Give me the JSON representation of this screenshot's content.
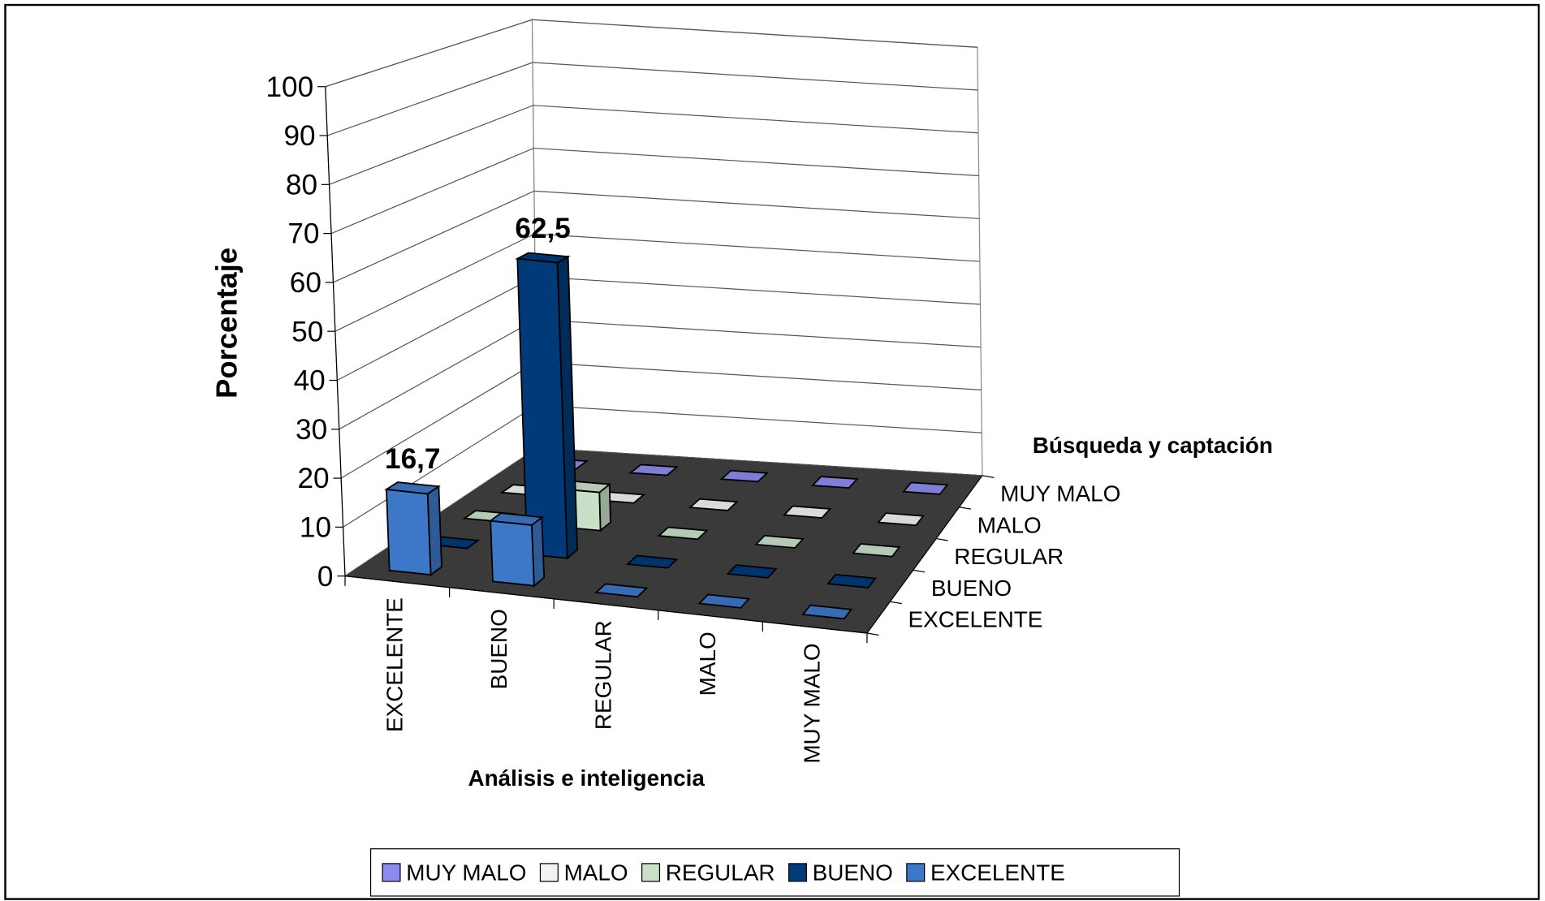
{
  "chart_data": {
    "type": "bar3d",
    "ylabel": "Porcentaje",
    "xlabel": "Análisis e inteligencia",
    "zlabel": "Búsqueda y captación",
    "categories": [
      "EXCELENTE",
      "BUENO",
      "REGULAR",
      "MALO",
      "MUY MALO"
    ],
    "series": [
      {
        "name": "MUY MALO",
        "color": "#8c8cf0",
        "values": [
          0,
          0,
          0,
          0,
          0
        ]
      },
      {
        "name": "MALO",
        "color": "#f2f2f2",
        "values": [
          0,
          0,
          0,
          0,
          0
        ]
      },
      {
        "name": "REGULAR",
        "color": "#c8e0c8",
        "values": [
          0,
          8.3,
          0,
          0,
          0
        ]
      },
      {
        "name": "BUENO",
        "color": "#003a78",
        "values": [
          0,
          62.5,
          0,
          0,
          0
        ],
        "value_labels": [
          null,
          "62,5",
          null,
          null,
          null
        ]
      },
      {
        "name": "EXCELENTE",
        "color": "#3d78c8",
        "values": [
          16.7,
          12.5,
          0,
          0,
          0
        ],
        "value_labels": [
          "16,7",
          null,
          null,
          null,
          null
        ]
      }
    ],
    "ylim": [
      0,
      100
    ],
    "yticks": [
      0,
      10,
      20,
      30,
      40,
      50,
      60,
      70,
      80,
      90,
      100
    ],
    "grid": true,
    "legend": "bottom"
  }
}
